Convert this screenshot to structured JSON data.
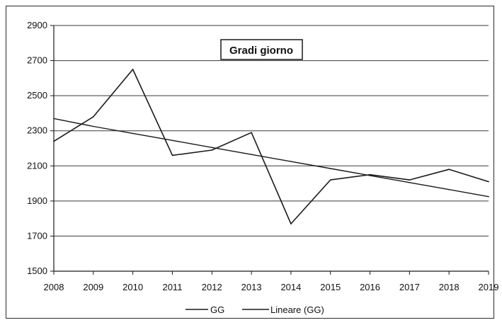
{
  "chart_data": {
    "type": "line",
    "title": "Gradi giorno",
    "categories": [
      "2008",
      "2009",
      "2010",
      "2011",
      "2012",
      "2013",
      "2014",
      "2015",
      "2016",
      "2017",
      "2018",
      "2019"
    ],
    "series": [
      {
        "name": "GG",
        "values": [
          2240,
          2380,
          2650,
          2160,
          2190,
          2290,
          1770,
          2020,
          2050,
          2020,
          2080,
          2010
        ]
      },
      {
        "name": "Lineare (GG)",
        "values": [
          2370,
          2325,
          2285,
          2245,
          2205,
          2165,
          2125,
          2085,
          2045,
          2005,
          1965,
          1925
        ]
      }
    ],
    "yticks": [
      1500,
      1700,
      1900,
      2100,
      2300,
      2500,
      2700,
      2900
    ],
    "ylim": [
      1500,
      2900
    ],
    "xlabel": "",
    "ylabel": "",
    "grid": true,
    "legend_position": "bottom",
    "colors": {
      "line": "#1a1a1a",
      "grid": "#3a3a3a",
      "frame": "#2a2a2a"
    }
  }
}
